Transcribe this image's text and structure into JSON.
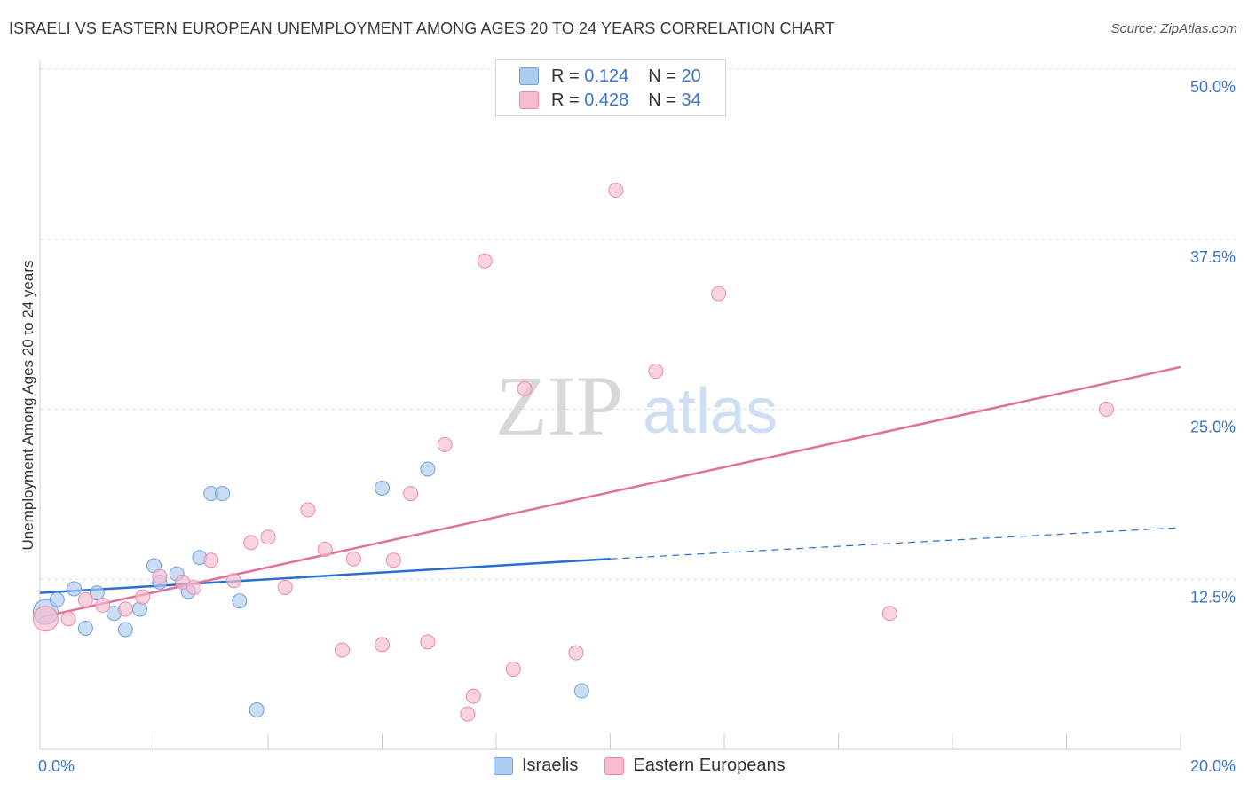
{
  "title": "ISRAELI VS EASTERN EUROPEAN UNEMPLOYMENT AMONG AGES 20 TO 24 YEARS CORRELATION CHART",
  "source": "Source: ZipAtlas.com",
  "watermark": {
    "zip": "ZIP",
    "atlas": "atlas"
  },
  "legend": {
    "rows": [
      {
        "r_label": "R =",
        "r_value": "0.124",
        "n_label": "N =",
        "n_value": "20",
        "color": "#aecbf0"
      },
      {
        "r_label": "R =",
        "r_value": "0.428",
        "n_label": "N =",
        "n_value": "34",
        "color": "#f7bcd0"
      }
    ]
  },
  "bottom_legend": [
    {
      "label": "Israelis",
      "color": "#aecbf0"
    },
    {
      "label": "Eastern Europeans",
      "color": "#f7bcd0"
    }
  ],
  "chart_data": {
    "type": "scatter",
    "xlabel": "",
    "ylabel": "Unemployment Among Ages 20 to 24 years",
    "xlim": [
      0,
      20
    ],
    "ylim": [
      0,
      50
    ],
    "x_tick_labels": [
      "0.0%",
      "20.0%"
    ],
    "y_ticks": [
      12.5,
      25.0,
      37.5,
      50.0
    ],
    "y_tick_labels": [
      "12.5%",
      "25.0%",
      "37.5%",
      "50.0%"
    ],
    "series": [
      {
        "name": "Israelis",
        "color": "#aecbf0",
        "stroke": "#6d9ee0",
        "line_color": "#2a6fd0",
        "points": [
          [
            0.1,
            10.1
          ],
          [
            0.3,
            11.0
          ],
          [
            0.6,
            11.8
          ],
          [
            0.8,
            8.9
          ],
          [
            1.0,
            11.5
          ],
          [
            1.3,
            10.0
          ],
          [
            1.5,
            8.8
          ],
          [
            1.75,
            10.3
          ],
          [
            2.0,
            13.5
          ],
          [
            2.1,
            12.3
          ],
          [
            2.4,
            12.9
          ],
          [
            2.6,
            11.6
          ],
          [
            2.8,
            14.1
          ],
          [
            3.0,
            18.8
          ],
          [
            3.2,
            18.8
          ],
          [
            3.5,
            10.9
          ],
          [
            3.8,
            2.9
          ],
          [
            6.0,
            19.2
          ],
          [
            6.8,
            20.6
          ],
          [
            9.5,
            4.3
          ]
        ],
        "trend": {
          "x_solid": [
            0,
            10
          ],
          "y_solid": [
            11.5,
            14.0
          ],
          "x_dashed": [
            10,
            20
          ],
          "y_dashed": [
            14.0,
            16.3
          ]
        }
      },
      {
        "name": "Eastern Europeans",
        "color": "#f7bcd0",
        "stroke": "#e98aab",
        "line_color": "#e0709a",
        "points": [
          [
            0.1,
            9.6
          ],
          [
            0.5,
            9.6
          ],
          [
            0.8,
            11.0
          ],
          [
            1.1,
            10.6
          ],
          [
            1.5,
            10.3
          ],
          [
            1.8,
            11.2
          ],
          [
            2.1,
            12.7
          ],
          [
            2.5,
            12.3
          ],
          [
            2.7,
            11.9
          ],
          [
            3.0,
            13.9
          ],
          [
            3.4,
            12.4
          ],
          [
            3.7,
            15.2
          ],
          [
            4.0,
            15.6
          ],
          [
            4.3,
            11.9
          ],
          [
            4.7,
            17.6
          ],
          [
            5.0,
            14.7
          ],
          [
            5.3,
            7.3
          ],
          [
            5.5,
            14.0
          ],
          [
            6.0,
            7.7
          ],
          [
            6.2,
            13.9
          ],
          [
            6.5,
            18.8
          ],
          [
            6.8,
            7.9
          ],
          [
            7.1,
            22.4
          ],
          [
            7.5,
            2.6
          ],
          [
            7.6,
            3.9
          ],
          [
            7.8,
            35.9
          ],
          [
            8.3,
            5.9
          ],
          [
            8.5,
            26.5
          ],
          [
            9.4,
            7.1
          ],
          [
            10.1,
            41.1
          ],
          [
            10.8,
            27.8
          ],
          [
            11.9,
            33.5
          ],
          [
            14.9,
            10.0
          ],
          [
            18.7,
            25.0
          ]
        ],
        "trend": {
          "x_solid": [
            0,
            20
          ],
          "y_solid": [
            9.7,
            28.1
          ]
        }
      }
    ]
  }
}
